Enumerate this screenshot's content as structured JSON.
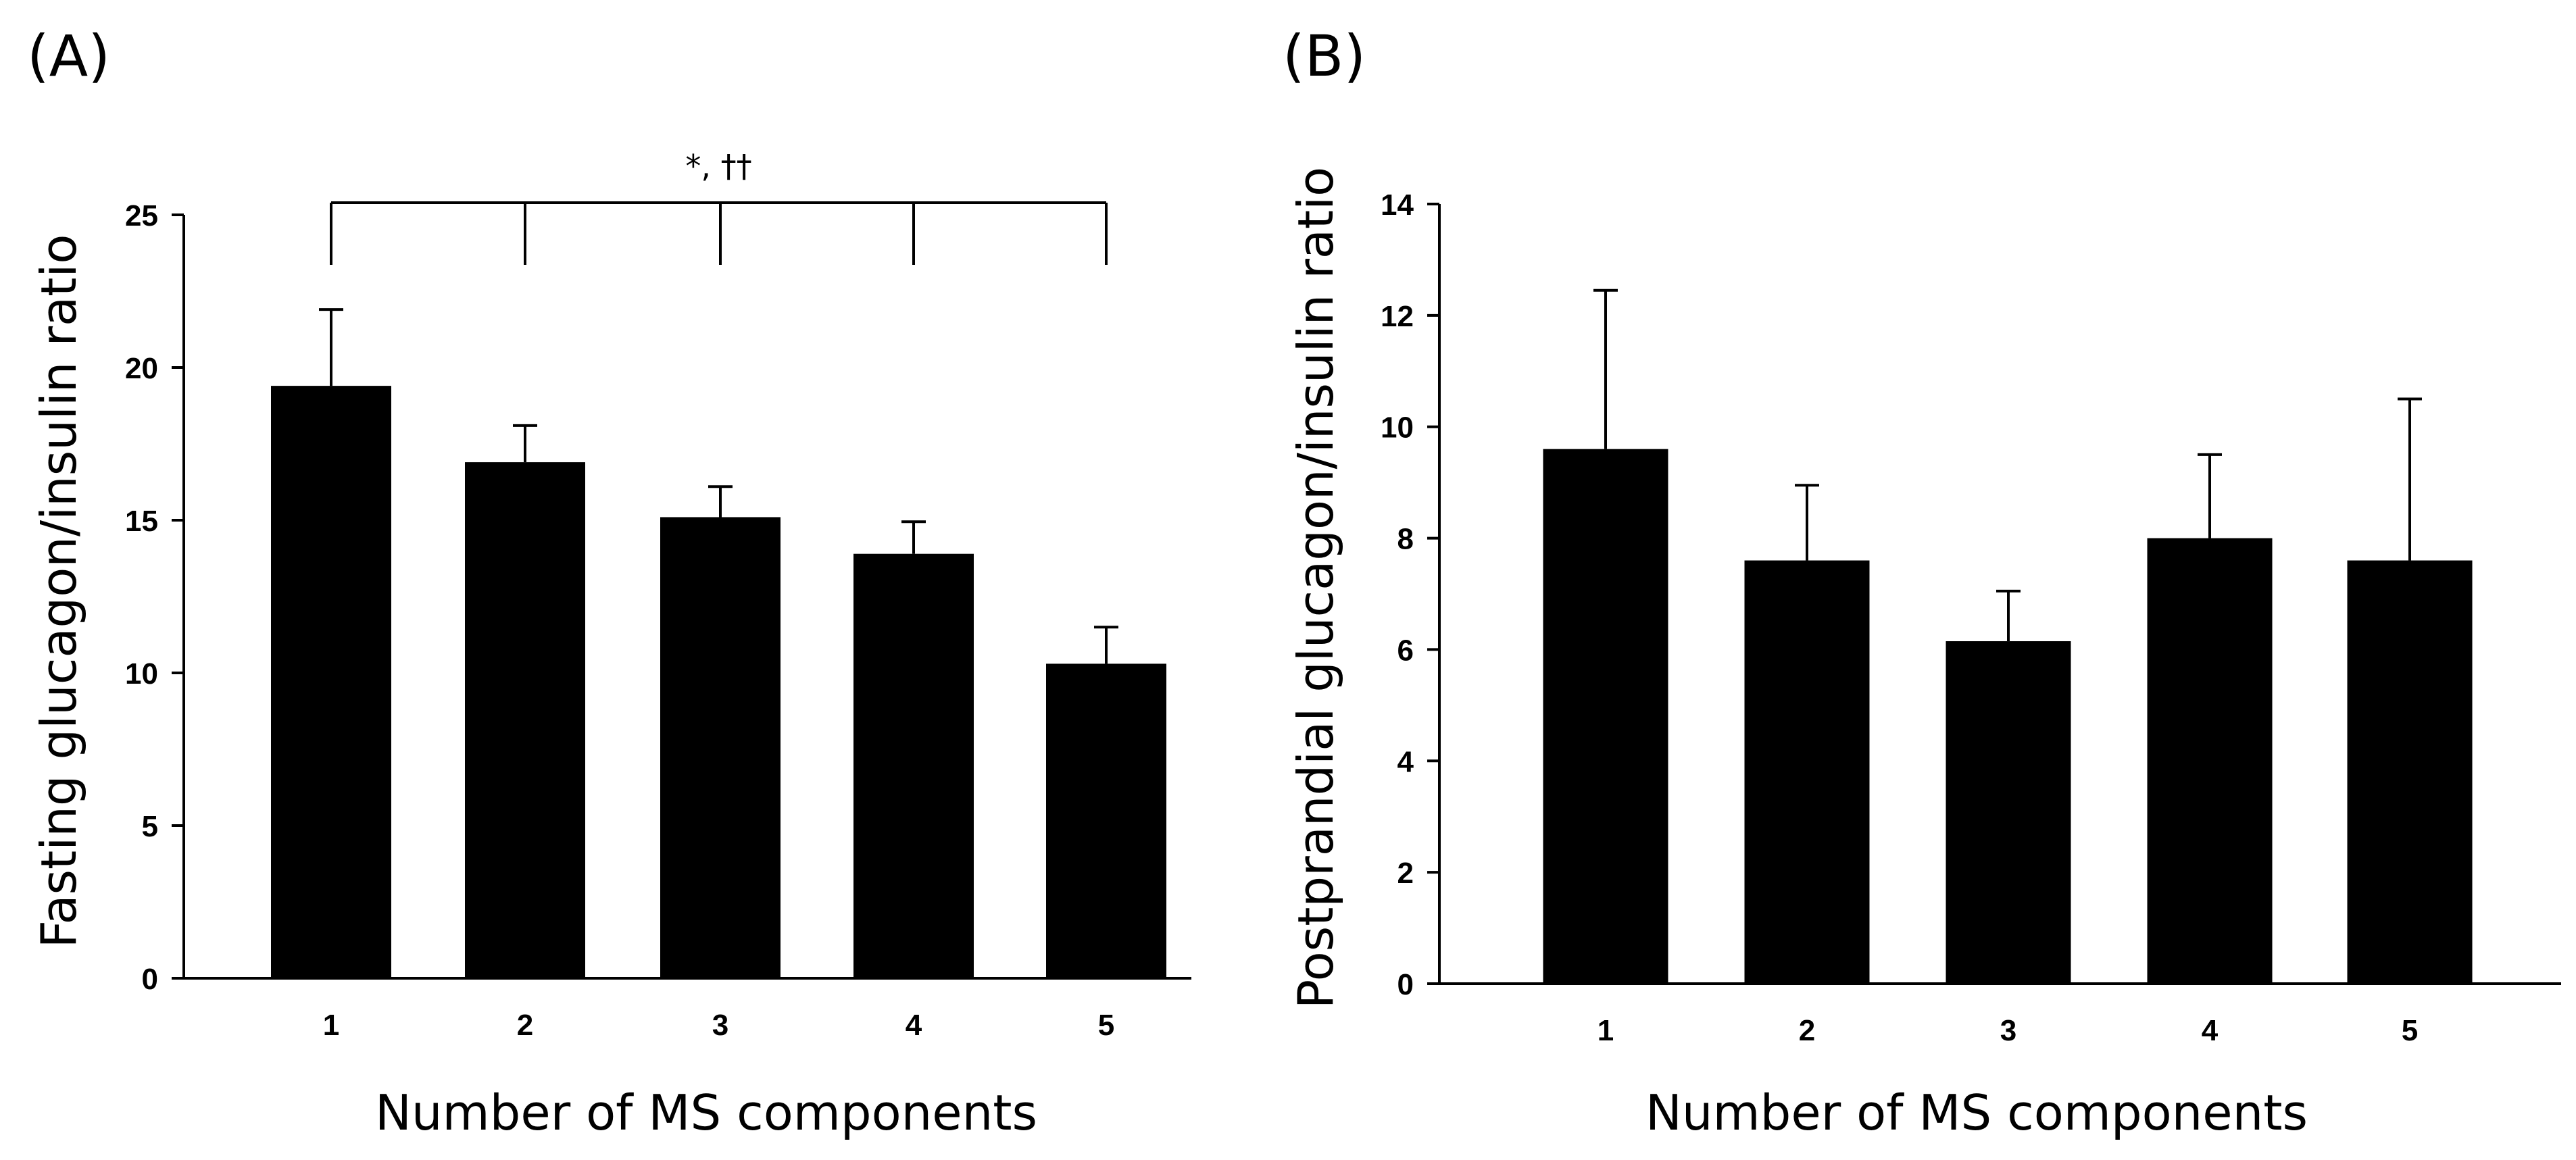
{
  "chart_data": [
    {
      "type": "bar",
      "panel_label": "(A)",
      "categories": [
        "1",
        "2",
        "3",
        "4",
        "5"
      ],
      "values": [
        19.4,
        16.9,
        15.1,
        13.9,
        10.3
      ],
      "error_upper": [
        21.9,
        18.1,
        16.1,
        14.95,
        11.5
      ],
      "xlabel": "Number of MS components",
      "ylabel": "Fasting glucagon/insulin ratio",
      "ylim": [
        0,
        25
      ],
      "yticks": [
        "0",
        "5",
        "10",
        "15",
        "20",
        "25"
      ],
      "ytick_values": [
        0,
        5,
        10,
        15,
        20,
        25
      ],
      "annotation": {
        "text": "*, ††",
        "spans_categories": [
          "1",
          "5"
        ],
        "drops_at": [
          "1",
          "2",
          "3",
          "4",
          "5"
        ]
      }
    },
    {
      "type": "bar",
      "panel_label": "(B)",
      "categories": [
        "1",
        "2",
        "3",
        "4",
        "5"
      ],
      "values": [
        9.6,
        7.6,
        6.15,
        8.0,
        7.6
      ],
      "error_upper": [
        12.45,
        8.95,
        7.05,
        9.5,
        10.5
      ],
      "xlabel": "Number of MS components",
      "ylabel": "Postprandial glucagon/insulin ratio",
      "ylim": [
        0,
        14
      ],
      "yticks": [
        "0",
        "2",
        "4",
        "6",
        "8",
        "10",
        "12",
        "14"
      ],
      "ytick_values": [
        0,
        2,
        4,
        6,
        8,
        10,
        12,
        14
      ]
    }
  ]
}
